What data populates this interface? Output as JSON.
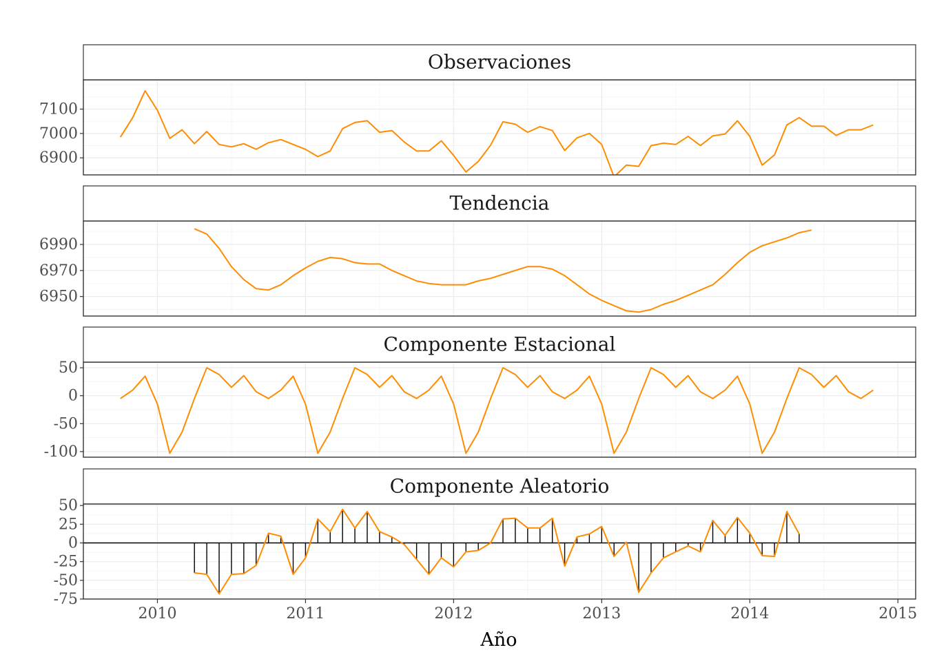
{
  "chart_data": {
    "type": "line",
    "xlabel": "Año",
    "x_ticks": [
      2010,
      2011,
      2012,
      2013,
      2014,
      2015
    ],
    "xlim": [
      2009.5,
      2015.12
    ],
    "line_color": "#FF8C00",
    "grid": true,
    "panels": [
      {
        "title": "Observaciones",
        "ylim": [
          6830,
          7220
        ],
        "y_ticks": [
          6900,
          7000,
          7100
        ],
        "x_start": 2009.75,
        "values": [
          6985,
          7065,
          7175,
          7095,
          6980,
          7015,
          6958,
          7008,
          6955,
          6945,
          6958,
          6935,
          6962,
          6975,
          6955,
          6935,
          6905,
          6928,
          7020,
          7045,
          7052,
          7005,
          7012,
          6965,
          6928,
          6928,
          6970,
          6910,
          6842,
          6885,
          6952,
          7048,
          7038,
          7005,
          7028,
          7012,
          6930,
          6982,
          7000,
          6955,
          6822,
          6870,
          6865,
          6950,
          6960,
          6955,
          6988,
          6950,
          6990,
          6998,
          7052,
          6988,
          6870,
          6912,
          7035,
          7065,
          7030,
          7030,
          6992,
          7015,
          7015,
          7035
        ]
      },
      {
        "title": "Tendencia",
        "ylim": [
          6935,
          7008
        ],
        "y_ticks": [
          6950,
          6970,
          6990
        ],
        "x_start": 2010.25,
        "values": [
          7002,
          6998,
          6987,
          6973,
          6963,
          6956,
          6955,
          6959,
          6966,
          6972,
          6977,
          6980,
          6979,
          6976,
          6975,
          6975,
          6970,
          6966,
          6962,
          6960,
          6959,
          6959,
          6959,
          6962,
          6964,
          6967,
          6970,
          6973,
          6973,
          6971,
          6966,
          6959,
          6952,
          6947,
          6943,
          6939,
          6938,
          6940,
          6944,
          6947,
          6951,
          6955,
          6959,
          6967,
          6976,
          6984,
          6989,
          6992,
          6995,
          6999,
          7001
        ]
      },
      {
        "title": "Componente Estacional",
        "ylim": [
          -110,
          60
        ],
        "y_ticks": [
          -100,
          -50,
          0,
          50
        ],
        "x_start": 2009.75,
        "values": [
          -5,
          10,
          35,
          -15,
          -103,
          -65,
          -5,
          50,
          38,
          15,
          36,
          7,
          -5,
          10,
          35,
          -15,
          -103,
          -65,
          -5,
          50,
          38,
          15,
          36,
          7,
          -5,
          10,
          35,
          -15,
          -103,
          -65,
          -5,
          50,
          38,
          15,
          36,
          7,
          -5,
          10,
          35,
          -15,
          -103,
          -65,
          -5,
          50,
          38,
          15,
          36,
          7,
          -5,
          10,
          35,
          -15,
          -103,
          -65,
          -5,
          50,
          38,
          15,
          36,
          7,
          -5,
          10
        ]
      },
      {
        "title": "Componente Aleatorio",
        "ylim": [
          -75,
          52
        ],
        "y_ticks": [
          -75,
          -50,
          -25,
          0,
          25,
          50
        ],
        "x_start": 2010.25,
        "values": [
          -40,
          -42,
          -68,
          -42,
          -41,
          -30,
          13,
          9,
          -42,
          -20,
          32,
          15,
          45,
          20,
          42,
          15,
          8,
          -2,
          -22,
          -42,
          -20,
          -32,
          -12,
          -10,
          0,
          32,
          33,
          20,
          20,
          33,
          -31,
          8,
          12,
          22,
          -18,
          1,
          -66,
          -40,
          -20,
          -12,
          -4,
          -12,
          30,
          10,
          34,
          13,
          -17,
          -18,
          42,
          12
        ]
      }
    ]
  }
}
